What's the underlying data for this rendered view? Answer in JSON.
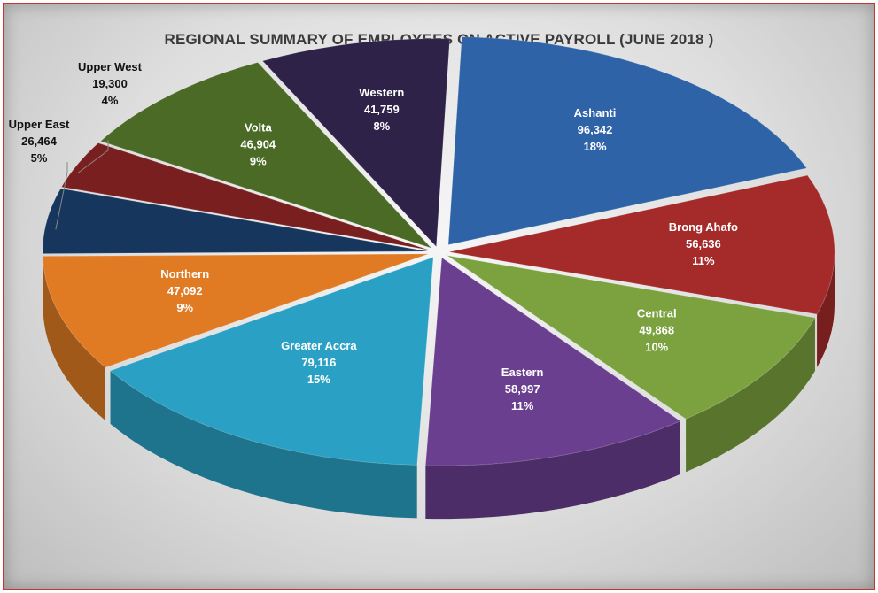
{
  "chart_data": {
    "type": "pie",
    "title": "REGIONAL SUMMARY OF EMPLOYEES ON ACTIVE PAYROLL (JUNE 2018 )",
    "legend": "none",
    "slices": [
      {
        "label": "Ashanti",
        "value": 96342,
        "value_label": "96,342",
        "pct_label": "18%",
        "color": "#2e63a8"
      },
      {
        "label": "Brong Ahafo",
        "value": 56636,
        "value_label": "56,636",
        "pct_label": "11%",
        "color": "#a52a2a"
      },
      {
        "label": "Central",
        "value": 49868,
        "value_label": "49,868",
        "pct_label": "10%",
        "color": "#7ba23f"
      },
      {
        "label": "Eastern",
        "value": 58997,
        "value_label": "58,997",
        "pct_label": "11%",
        "color": "#6a3f8f"
      },
      {
        "label": "Greater Accra",
        "value": 79116,
        "value_label": "79,116",
        "pct_label": "15%",
        "color": "#2aa1c4"
      },
      {
        "label": "Northern",
        "value": 47092,
        "value_label": "47,092",
        "pct_label": "9%",
        "color": "#e07b24"
      },
      {
        "label": "Upper East",
        "value": 26464,
        "value_label": "26,464",
        "pct_label": "5%",
        "color": "#17365d"
      },
      {
        "label": "Upper West",
        "value": 19300,
        "value_label": "19,300",
        "pct_label": "4%",
        "color": "#7a1f1f"
      },
      {
        "label": "Volta",
        "value": 46904,
        "value_label": "46,904",
        "pct_label": "9%",
        "color": "#4a6a25"
      },
      {
        "label": "Western",
        "value": 41759,
        "value_label": "41,759",
        "pct_label": "8%",
        "color": "#2f2248"
      }
    ]
  }
}
